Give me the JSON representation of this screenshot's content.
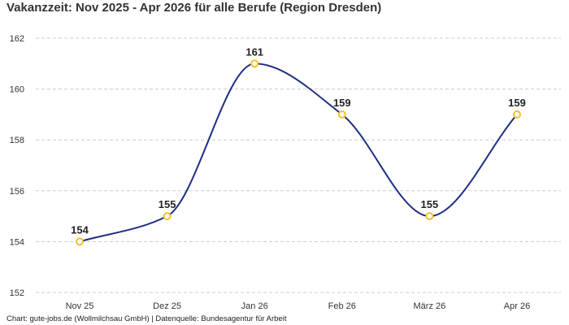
{
  "chart_data": {
    "type": "line",
    "title": "Vakanzzeit: Nov 2025 - Apr 2026 für alle Berufe (Region Dresden)",
    "categories": [
      "Nov 25",
      "Dez 25",
      "Jan 26",
      "Feb 26",
      "März 26",
      "Apr 26"
    ],
    "values": [
      154,
      155,
      161,
      159,
      155,
      159
    ],
    "xlabel": "",
    "ylabel": "",
    "ylim": [
      152,
      162
    ],
    "yticks": [
      "152",
      "154",
      "156",
      "158",
      "160",
      "162"
    ],
    "grid": true,
    "smooth": true,
    "data_labels": true
  },
  "footer": "Chart: gute-jobs.de (Wollmilchsau GmbH) | Datenquelle: Bundesagentur für Arbeit",
  "colors": {
    "line": "#1f2f86",
    "marker_stroke": "#f2c12e",
    "marker_fill": "#ffffff",
    "grid": "#cccccc"
  }
}
